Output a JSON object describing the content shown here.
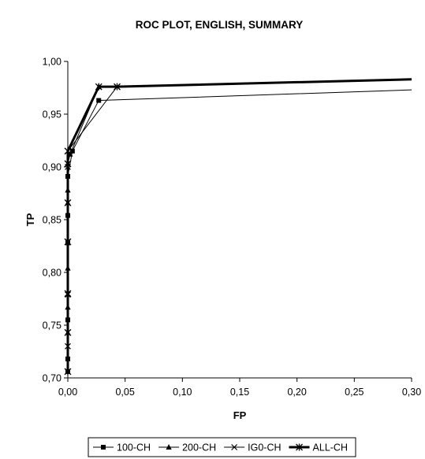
{
  "chart_data": {
    "type": "line",
    "title": "ROC PLOT, ENGLISH, SUMMARY",
    "xlabel": "FP",
    "ylabel": "TP",
    "xlim": [
      0,
      0.3
    ],
    "ylim": [
      0.7,
      1.0
    ],
    "x_ticks": [
      "0,00",
      "0,05",
      "0,10",
      "0,15",
      "0,20",
      "0,25",
      "0,30"
    ],
    "y_ticks": [
      "0,70",
      "0,75",
      "0,80",
      "0,85",
      "0,90",
      "0,95",
      "1,00"
    ],
    "grid": false,
    "legend_position": "bottom",
    "series": [
      {
        "name": "100-CH",
        "marker": "square",
        "line_weight": "thin",
        "points": [
          [
            0,
            0.706
          ],
          [
            0,
            0.718
          ],
          [
            0,
            0.755
          ],
          [
            0,
            0.828
          ],
          [
            0,
            0.854
          ],
          [
            0,
            0.891
          ],
          [
            0.004,
            0.915
          ],
          [
            0.027,
            0.963
          ],
          [
            0.3,
            0.973
          ]
        ]
      },
      {
        "name": "200-CH",
        "marker": "triangle",
        "line_weight": "thin",
        "points": [
          [
            0,
            0.706
          ],
          [
            0,
            0.743
          ],
          [
            0,
            0.767
          ],
          [
            0,
            0.804
          ],
          [
            0,
            0.866
          ],
          [
            0,
            0.878
          ],
          [
            0,
            0.903
          ],
          [
            0.002,
            0.912
          ],
          [
            0.027,
            0.976
          ],
          [
            0.3,
            0.983
          ]
        ]
      },
      {
        "name": "IG0-CH",
        "marker": "x",
        "line_weight": "thin",
        "points": [
          [
            0,
            0.706
          ],
          [
            0,
            0.73
          ],
          [
            0,
            0.779
          ],
          [
            0,
            0.866
          ],
          [
            0,
            0.9
          ],
          [
            0,
            0.915
          ],
          [
            0.043,
            0.976
          ],
          [
            0.3,
            0.983
          ]
        ]
      },
      {
        "name": "ALL-CH",
        "marker": "star",
        "line_weight": "thick",
        "points": [
          [
            0,
            0.706
          ],
          [
            0,
            0.743
          ],
          [
            0,
            0.78
          ],
          [
            0,
            0.829
          ],
          [
            0,
            0.866
          ],
          [
            0,
            0.903
          ],
          [
            0,
            0.915
          ],
          [
            0.027,
            0.976
          ],
          [
            0.043,
            0.976
          ],
          [
            0.3,
            0.983
          ]
        ]
      }
    ]
  }
}
